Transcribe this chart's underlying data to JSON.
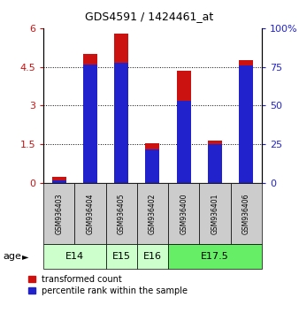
{
  "title": "GDS4591 / 1424461_at",
  "samples": [
    "GSM936403",
    "GSM936404",
    "GSM936405",
    "GSM936402",
    "GSM936400",
    "GSM936401",
    "GSM936406"
  ],
  "transformed_count": [
    0.25,
    5.0,
    5.8,
    1.55,
    4.35,
    1.65,
    4.75
  ],
  "percentile_rank_scaled": [
    0.12,
    4.6,
    4.65,
    1.3,
    3.2,
    1.5,
    4.55
  ],
  "age_groups": [
    {
      "label": "E14",
      "start": 0,
      "end": 2,
      "color": "#ccffcc"
    },
    {
      "label": "E15",
      "start": 2,
      "end": 3,
      "color": "#ccffcc"
    },
    {
      "label": "E16",
      "start": 3,
      "end": 4,
      "color": "#ccffcc"
    },
    {
      "label": "E17.5",
      "start": 4,
      "end": 7,
      "color": "#66ee66"
    }
  ],
  "ylim_left": [
    0,
    6
  ],
  "ylim_right": [
    0,
    100
  ],
  "yticks_left": [
    0,
    1.5,
    3,
    4.5,
    6
  ],
  "yticks_right": [
    0,
    25,
    50,
    75,
    100
  ],
  "bar_color_red": "#cc1111",
  "bar_color_blue": "#2222cc",
  "bar_width": 0.45,
  "legend_red_label": "transformed count",
  "legend_blue_label": "percentile rank within the sample",
  "age_label": "age",
  "right_ytick_labels": [
    "0",
    "25",
    "50",
    "75",
    "100%"
  ],
  "sample_area_bg": "#cccccc",
  "figure_bg": "#ffffff"
}
